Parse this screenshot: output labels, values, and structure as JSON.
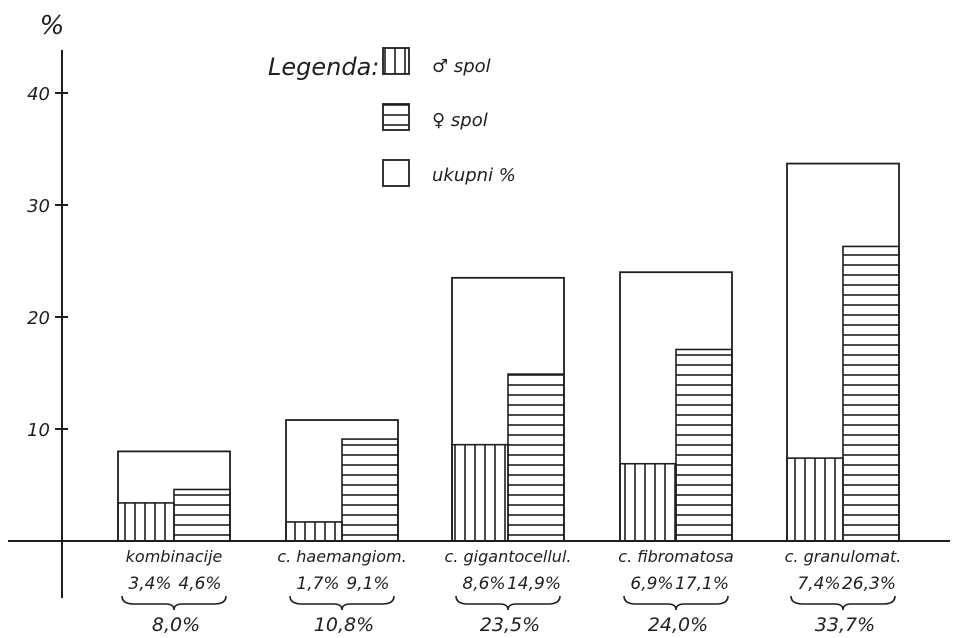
{
  "chart_data": {
    "type": "bar",
    "ylabel": "%",
    "ylim": [
      0,
      45
    ],
    "yticks": [
      "10",
      "20",
      "30",
      "40"
    ],
    "ytick_values": [
      10,
      20,
      30,
      40
    ],
    "grid": false,
    "legend_position": "top-center",
    "legend": {
      "title": "Legenda:",
      "items": [
        {
          "label": "♂ spol",
          "pattern": "vertical-hatch"
        },
        {
          "label": "♀ spol",
          "pattern": "horizontal-hatch"
        },
        {
          "label": "ukupni %",
          "pattern": "empty"
        }
      ]
    },
    "categories": [
      "kombinacije",
      "c. haemangiom.",
      "c. gigantocellul.",
      "c. fibromatosa",
      "c. granulomat."
    ],
    "series": [
      {
        "name": "♂ spol",
        "values": [
          3.4,
          1.7,
          8.6,
          6.9,
          7.4
        ],
        "labels": [
          "3,4%",
          "1,7%",
          "8,6%",
          "6,9%",
          "7,4%"
        ]
      },
      {
        "name": "♀ spol",
        "values": [
          4.6,
          9.1,
          14.9,
          17.1,
          26.3
        ],
        "labels": [
          "4,6%",
          "9,1%",
          "14,9%",
          "17,1%",
          "26,3%"
        ]
      },
      {
        "name": "ukupni %",
        "values": [
          8.0,
          10.8,
          23.5,
          24.0,
          33.7
        ],
        "labels": [
          "8,0%",
          "10,8%",
          "23,5%",
          "24,0%",
          "33,7%"
        ]
      }
    ]
  },
  "colors": {
    "ink": "#1f1f1f",
    "paper": "#ffffff"
  }
}
